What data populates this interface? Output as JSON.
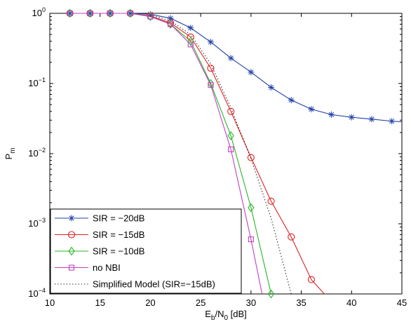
{
  "chart_data": {
    "type": "line",
    "xlabel_main": "E",
    "xlabel_sub1": "b",
    "xlabel_mid": "/N",
    "xlabel_sub2": "0",
    "xlabel_tail": " [dB]",
    "ylabel_main": "P",
    "ylabel_sub": "m",
    "xlim": [
      10,
      45
    ],
    "ylim": [
      0.0001,
      1
    ],
    "yscale": "log",
    "xticks": [
      "10",
      "15",
      "20",
      "25",
      "30",
      "35",
      "40",
      "45"
    ],
    "yticks": [
      {
        "base": "10",
        "exp": "0"
      },
      {
        "base": "10",
        "exp": "−1"
      },
      {
        "base": "10",
        "exp": "−2"
      },
      {
        "base": "10",
        "exp": "−3"
      },
      {
        "base": "10",
        "exp": "−4"
      }
    ],
    "grid": false,
    "legend_position": "bottom-left",
    "series": [
      {
        "name": "SIR = −20dB",
        "color": "#1f3fa8",
        "marker": "asterisk",
        "line": "solid",
        "x": [
          12,
          14,
          16,
          18,
          20,
          22,
          24,
          26,
          28,
          30,
          32,
          34,
          36,
          38,
          40,
          42,
          44
        ],
        "y": [
          1,
          1,
          1,
          1,
          0.97,
          0.85,
          0.62,
          0.39,
          0.23,
          0.145,
          0.088,
          0.058,
          0.043,
          0.036,
          0.033,
          0.031,
          0.029
        ],
        "line_x": [
          12,
          14,
          16,
          18,
          20,
          22,
          24,
          26,
          28,
          30,
          32,
          34,
          36,
          38,
          40,
          42,
          44,
          45
        ],
        "line_y": [
          1,
          1,
          1,
          1,
          0.97,
          0.85,
          0.62,
          0.39,
          0.23,
          0.145,
          0.088,
          0.058,
          0.043,
          0.036,
          0.033,
          0.031,
          0.029,
          0.0285
        ]
      },
      {
        "name": "SIR = −15dB",
        "color": "#e02020",
        "marker": "circle",
        "line": "solid",
        "x": [
          12,
          14,
          16,
          18,
          20,
          22,
          24,
          26,
          28,
          30,
          32,
          34,
          36
        ],
        "y": [
          1,
          1,
          1,
          1,
          0.92,
          0.73,
          0.46,
          0.165,
          0.04,
          0.0088,
          0.0021,
          0.00065,
          0.00016
        ],
        "line_x": [
          12,
          14,
          16,
          18,
          20,
          22,
          24,
          26,
          28,
          30,
          32,
          34,
          36,
          37.3
        ],
        "line_y": [
          1,
          1,
          1,
          1,
          0.92,
          0.73,
          0.46,
          0.165,
          0.04,
          0.0088,
          0.0021,
          0.00065,
          0.00016,
          0.0001
        ]
      },
      {
        "name": "SIR = −10dB",
        "color": "#2ab52a",
        "marker": "diamond",
        "line": "solid",
        "x": [
          12,
          14,
          16,
          18,
          20,
          22,
          24,
          26,
          28,
          30,
          32
        ],
        "y": [
          1,
          1,
          1,
          1,
          0.9,
          0.7,
          0.4,
          0.1,
          0.018,
          0.0017,
          0.0001
        ],
        "line_x": [
          12,
          14,
          16,
          18,
          20,
          22,
          24,
          26,
          28,
          30,
          32
        ],
        "line_y": [
          1,
          1,
          1,
          1,
          0.9,
          0.7,
          0.4,
          0.1,
          0.018,
          0.0017,
          0.0001
        ]
      },
      {
        "name": "no NBI",
        "color": "#c040c0",
        "marker": "square",
        "line": "solid",
        "x": [
          12,
          14,
          16,
          18,
          20,
          22,
          24,
          26,
          28,
          30
        ],
        "y": [
          1,
          1,
          1,
          1,
          0.9,
          0.7,
          0.36,
          0.095,
          0.0115,
          0.0006
        ],
        "line_x": [
          12,
          14,
          16,
          18,
          20,
          22,
          24,
          26,
          28,
          30,
          31.1
        ],
        "line_y": [
          1,
          1,
          1,
          1,
          0.9,
          0.7,
          0.36,
          0.095,
          0.0115,
          0.0006,
          0.0001
        ]
      },
      {
        "name": "Simplified Model (SIR=−15dB)",
        "color": "#000000",
        "marker": "none",
        "line": "dotted",
        "x": [],
        "y": [],
        "line_x": [
          20,
          22,
          24,
          26,
          28,
          30,
          32,
          34
        ],
        "line_y": [
          0.95,
          0.78,
          0.5,
          0.19,
          0.045,
          0.0085,
          0.0012,
          0.0001
        ]
      }
    ]
  }
}
